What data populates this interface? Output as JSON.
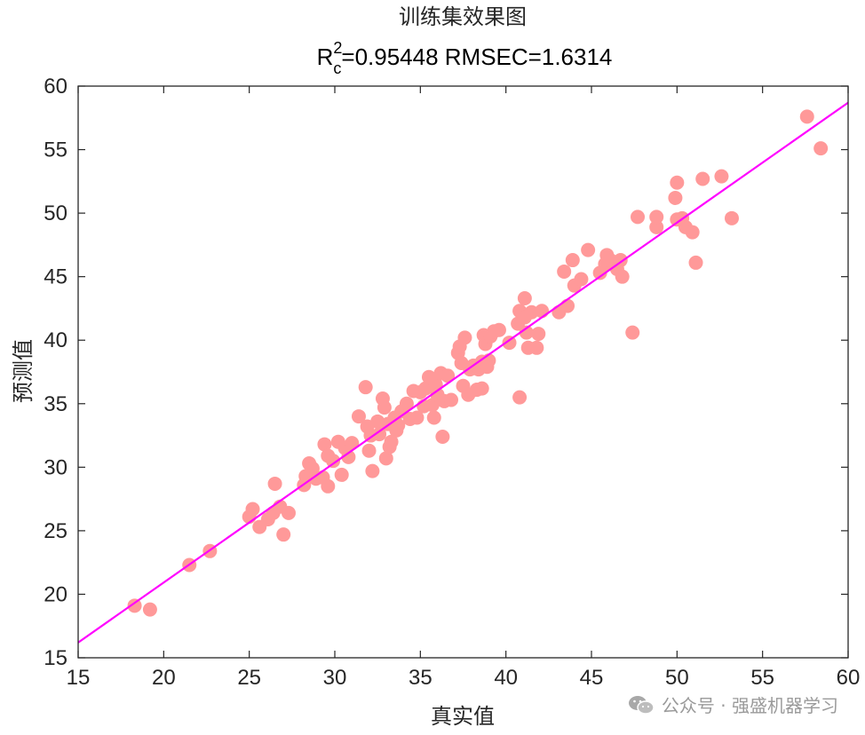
{
  "chart_data": {
    "type": "scatter",
    "title": "训练集效果图",
    "subtitle": {
      "r_label": "R",
      "r_sup": "2",
      "r_sub": "c",
      "rest": "=0.95448  RMSEC=1.6314"
    },
    "xlabel": "真实值",
    "ylabel": "预测值",
    "xlim": [
      15,
      60
    ],
    "ylim": [
      15,
      60
    ],
    "xticks": [
      15,
      20,
      25,
      30,
      35,
      40,
      45,
      50,
      55,
      60
    ],
    "yticks": [
      15,
      20,
      25,
      30,
      35,
      40,
      45,
      50,
      55,
      60
    ],
    "grid": false,
    "marker_color": "#FF9999",
    "line_color": "#FF00FF",
    "fit_line": {
      "x": [
        15,
        60
      ],
      "y": [
        16.2,
        58.7
      ]
    },
    "points": [
      [
        18.3,
        19.1
      ],
      [
        19.2,
        18.8
      ],
      [
        21.5,
        22.3
      ],
      [
        22.7,
        23.4
      ],
      [
        25.0,
        26.1
      ],
      [
        25.2,
        26.7
      ],
      [
        25.6,
        25.3
      ],
      [
        26.1,
        25.9
      ],
      [
        26.4,
        26.4
      ],
      [
        26.5,
        28.7
      ],
      [
        26.8,
        26.9
      ],
      [
        27.0,
        24.7
      ],
      [
        27.3,
        26.4
      ],
      [
        28.2,
        28.6
      ],
      [
        28.3,
        29.3
      ],
      [
        28.5,
        30.3
      ],
      [
        28.7,
        29.9
      ],
      [
        28.9,
        29.1
      ],
      [
        29.3,
        29.2
      ],
      [
        29.4,
        31.8
      ],
      [
        29.6,
        28.5
      ],
      [
        29.6,
        30.9
      ],
      [
        29.9,
        30.5
      ],
      [
        30.2,
        32.0
      ],
      [
        30.4,
        29.4
      ],
      [
        30.6,
        31.5
      ],
      [
        30.8,
        30.8
      ],
      [
        31.0,
        31.9
      ],
      [
        31.4,
        34.0
      ],
      [
        31.8,
        36.3
      ],
      [
        31.9,
        33.2
      ],
      [
        32.0,
        31.3
      ],
      [
        32.1,
        32.5
      ],
      [
        32.2,
        29.7
      ],
      [
        32.5,
        33.6
      ],
      [
        32.6,
        32.6
      ],
      [
        32.8,
        35.4
      ],
      [
        32.9,
        34.7
      ],
      [
        33.0,
        30.7
      ],
      [
        33.1,
        33.4
      ],
      [
        33.2,
        31.6
      ],
      [
        33.3,
        32.0
      ],
      [
        33.5,
        33.9
      ],
      [
        33.6,
        32.9
      ],
      [
        33.7,
        33.3
      ],
      [
        33.9,
        34.4
      ],
      [
        34.2,
        35.0
      ],
      [
        34.4,
        33.8
      ],
      [
        34.6,
        36.0
      ],
      [
        34.8,
        33.9
      ],
      [
        35.0,
        35.9
      ],
      [
        35.2,
        34.8
      ],
      [
        35.3,
        36.2
      ],
      [
        35.5,
        37.1
      ],
      [
        35.7,
        34.9
      ],
      [
        35.8,
        33.9
      ],
      [
        35.9,
        36.5
      ],
      [
        36.0,
        35.7
      ],
      [
        36.2,
        37.4
      ],
      [
        36.3,
        32.4
      ],
      [
        36.4,
        35.2
      ],
      [
        36.6,
        37.2
      ],
      [
        36.8,
        35.3
      ],
      [
        37.2,
        39.0
      ],
      [
        37.3,
        39.5
      ],
      [
        37.4,
        38.2
      ],
      [
        37.5,
        36.4
      ],
      [
        37.6,
        40.2
      ],
      [
        37.8,
        35.7
      ],
      [
        37.9,
        37.7
      ],
      [
        38.1,
        38.0
      ],
      [
        38.3,
        36.1
      ],
      [
        38.4,
        37.7
      ],
      [
        38.6,
        36.2
      ],
      [
        38.6,
        38.3
      ],
      [
        38.7,
        40.4
      ],
      [
        38.8,
        39.7
      ],
      [
        38.9,
        37.9
      ],
      [
        39.0,
        38.4
      ],
      [
        39.1,
        40.3
      ],
      [
        39.3,
        40.7
      ],
      [
        39.6,
        40.8
      ],
      [
        40.2,
        39.8
      ],
      [
        40.7,
        41.3
      ],
      [
        40.8,
        35.5
      ],
      [
        40.8,
        42.3
      ],
      [
        41.1,
        43.3
      ],
      [
        41.1,
        41.8
      ],
      [
        41.2,
        40.6
      ],
      [
        41.3,
        39.4
      ],
      [
        41.5,
        42.2
      ],
      [
        41.8,
        39.4
      ],
      [
        41.9,
        40.5
      ],
      [
        42.1,
        42.3
      ],
      [
        43.1,
        42.2
      ],
      [
        43.4,
        45.4
      ],
      [
        43.6,
        42.7
      ],
      [
        43.9,
        46.3
      ],
      [
        44.0,
        44.3
      ],
      [
        44.4,
        44.8
      ],
      [
        44.8,
        47.1
      ],
      [
        45.5,
        45.3
      ],
      [
        45.8,
        46.0
      ],
      [
        45.9,
        46.7
      ],
      [
        46.1,
        46.3
      ],
      [
        46.5,
        45.6
      ],
      [
        46.7,
        46.3
      ],
      [
        46.8,
        45.0
      ],
      [
        47.4,
        40.6
      ],
      [
        47.7,
        49.7
      ],
      [
        48.8,
        48.9
      ],
      [
        48.8,
        49.7
      ],
      [
        49.9,
        51.2
      ],
      [
        50.0,
        52.4
      ],
      [
        50.0,
        49.5
      ],
      [
        50.3,
        49.6
      ],
      [
        50.5,
        48.9
      ],
      [
        50.9,
        48.5
      ],
      [
        51.1,
        46.1
      ],
      [
        51.5,
        52.7
      ],
      [
        52.6,
        52.9
      ],
      [
        53.2,
        49.6
      ],
      [
        57.6,
        57.6
      ],
      [
        58.4,
        55.1
      ]
    ]
  },
  "watermark": {
    "icon": "wechat-icon",
    "text": "公众号 · 强盛机器学习"
  }
}
